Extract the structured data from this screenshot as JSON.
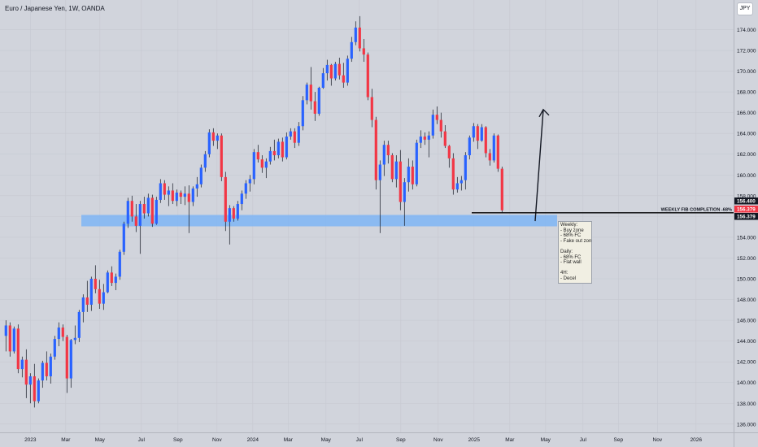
{
  "header": {
    "symbol_title": "Euro / Japanese Yen, 1W, OANDA",
    "currency_badge": "JPY"
  },
  "chart_data": {
    "type": "candlestick",
    "title": "Euro / Japanese Yen, 1W, OANDA",
    "y_ticks": [
      "136.000",
      "138.000",
      "140.000",
      "142.000",
      "144.000",
      "146.000",
      "148.000",
      "150.000",
      "152.000",
      "154.000",
      "156.000",
      "158.000",
      "160.000",
      "162.000",
      "164.000",
      "166.000",
      "168.000",
      "170.000",
      "172.000",
      "174.000"
    ],
    "x_ticks": [
      "2023",
      "Mar",
      "May",
      "Jul",
      "Sep",
      "Nov",
      "2024",
      "Mar",
      "May",
      "Jul",
      "Sep",
      "Nov",
      "2025",
      "Mar",
      "May",
      "Jul",
      "Sep",
      "Nov",
      "2026"
    ],
    "ylim": [
      135.6,
      177.2
    ],
    "colors": {
      "up": "#2962ff",
      "down": "#f23645",
      "zone": "#7fb5f5",
      "line": "#000000"
    },
    "candles": [
      [
        144.5,
        146,
        143,
        145.5
      ],
      [
        145.5,
        145.8,
        142.5,
        143
      ],
      [
        143,
        145.4,
        142.8,
        145.2
      ],
      [
        145.2,
        145.6,
        140.9,
        141.3
      ],
      [
        141.3,
        142.5,
        140.5,
        142.2
      ],
      [
        142.2,
        143.2,
        138.5,
        139.8
      ],
      [
        139.8,
        140.9,
        138,
        140.6
      ],
      [
        140.6,
        141.8,
        137.6,
        138.2
      ],
      [
        138.2,
        140.4,
        138,
        140.2
      ],
      [
        140.2,
        142.1,
        139.5,
        141.9
      ],
      [
        141.9,
        143,
        140.2,
        140.6
      ],
      [
        140.6,
        142.8,
        139.9,
        142.5
      ],
      [
        142.5,
        144.5,
        142.2,
        144.2
      ],
      [
        144.2,
        145.8,
        143.5,
        145.3
      ],
      [
        145.3,
        145.6,
        144,
        144.4
      ],
      [
        144.4,
        144.6,
        139,
        140.4
      ],
      [
        140.4,
        144.2,
        139.5,
        144.1
      ],
      [
        144.1,
        145.5,
        143.7,
        144.3
      ],
      [
        144.3,
        147,
        143.9,
        146.8
      ],
      [
        146.8,
        148.5,
        145.8,
        148.2
      ],
      [
        148.2,
        149.8,
        146.8,
        147.5
      ],
      [
        147.5,
        150.2,
        146.9,
        150
      ],
      [
        150,
        151.3,
        148.6,
        149
      ],
      [
        149,
        149.9,
        147.1,
        147.6
      ],
      [
        147.6,
        149.5,
        147,
        148.7
      ],
      [
        148.7,
        150.8,
        148.6,
        150.6
      ],
      [
        150.6,
        151.2,
        149.3,
        149.6
      ],
      [
        149.6,
        150.5,
        148.9,
        150.2
      ],
      [
        150.2,
        152.8,
        149.9,
        152.6
      ],
      [
        152.6,
        155.5,
        152.3,
        155.3
      ],
      [
        155.3,
        157.8,
        154.9,
        157.5
      ],
      [
        157.5,
        158,
        155.5,
        156
      ],
      [
        156,
        157.2,
        154.5,
        155.1
      ],
      [
        155.1,
        157.5,
        152.4,
        157.2
      ],
      [
        157.2,
        157.9,
        155.8,
        156.3
      ],
      [
        156.3,
        158.2,
        156,
        157.8
      ],
      [
        157.8,
        158.1,
        155,
        155.3
      ],
      [
        155.3,
        157.9,
        155.2,
        157.6
      ],
      [
        157.6,
        159.6,
        157.3,
        159.2
      ],
      [
        159.2,
        159.5,
        157.6,
        158.1
      ],
      [
        158.1,
        158.9,
        157,
        158.5
      ],
      [
        158.5,
        159.2,
        157.2,
        157.5
      ],
      [
        157.5,
        158.6,
        157,
        158.3
      ],
      [
        158.3,
        158.5,
        157.2,
        157.9
      ],
      [
        157.9,
        158.9,
        157.1,
        158.2
      ],
      [
        158.2,
        159,
        154.4,
        157.4
      ],
      [
        157.4,
        158.9,
        157,
        158.7
      ],
      [
        158.7,
        159.8,
        157.9,
        159.1
      ],
      [
        159.1,
        161,
        158.8,
        160.7
      ],
      [
        160.7,
        162.3,
        160.3,
        162
      ],
      [
        162,
        164.4,
        161.7,
        164.1
      ],
      [
        164.1,
        164.5,
        162.8,
        163.3
      ],
      [
        163.3,
        164,
        162.5,
        163.8
      ],
      [
        163.8,
        164,
        159.4,
        159.8
      ],
      [
        159.8,
        160.3,
        154.6,
        155.5
      ],
      [
        155.5,
        157.1,
        153.3,
        156.8
      ],
      [
        156.8,
        157,
        155.5,
        155.8
      ],
      [
        155.8,
        157.5,
        155.6,
        157.2
      ],
      [
        157.2,
        158.5,
        156.6,
        158.2
      ],
      [
        158.2,
        159.5,
        157.7,
        159.2
      ],
      [
        159.2,
        160,
        158.4,
        159.6
      ],
      [
        159.6,
        162.5,
        159.1,
        162.2
      ],
      [
        162.2,
        162.9,
        161.2,
        161.5
      ],
      [
        161.5,
        161.9,
        160.2,
        160.7
      ],
      [
        160.7,
        161.6,
        159.7,
        161.3
      ],
      [
        161.3,
        162.7,
        161,
        162.3
      ],
      [
        162.3,
        163.4,
        161.4,
        161.9
      ],
      [
        161.9,
        163.5,
        161.6,
        163.2
      ],
      [
        163.2,
        163.6,
        161.3,
        161.7
      ],
      [
        161.7,
        164.1,
        161.5,
        163.7
      ],
      [
        163.7,
        164.5,
        163.4,
        164.2
      ],
      [
        164.2,
        164.5,
        162.6,
        163.1
      ],
      [
        163.1,
        165.1,
        162.8,
        164.7
      ],
      [
        164.7,
        167.6,
        164.3,
        167.2
      ],
      [
        167.2,
        168.9,
        166.8,
        168.7
      ],
      [
        168.7,
        170.4,
        166.3,
        167.1
      ],
      [
        167.1,
        168,
        165.2,
        165.9
      ],
      [
        165.9,
        168.5,
        165.7,
        168.4
      ],
      [
        168.4,
        170.3,
        168.3,
        169.8
      ],
      [
        169.8,
        171.1,
        169.1,
        170.6
      ],
      [
        170.6,
        170.7,
        168.6,
        169.3
      ],
      [
        169.3,
        170.9,
        169.1,
        170.7
      ],
      [
        170.7,
        171.3,
        169.2,
        169.6
      ],
      [
        169.6,
        170.8,
        168.4,
        168.9
      ],
      [
        168.9,
        171.5,
        168.6,
        171.2
      ],
      [
        171.2,
        173.3,
        170.9,
        172.8
      ],
      [
        172.8,
        174.8,
        172.5,
        174.2
      ],
      [
        174.2,
        175.3,
        171.9,
        172.2
      ],
      [
        172.2,
        173.1,
        170.9,
        171.6
      ],
      [
        171.6,
        171.8,
        167.2,
        167.5
      ],
      [
        167.5,
        168.3,
        164.6,
        165.3
      ],
      [
        165.3,
        165.6,
        158.6,
        159.5
      ],
      [
        159.5,
        161.4,
        154.4,
        161
      ],
      [
        161,
        163.3,
        159.9,
        162.9
      ],
      [
        162.9,
        163.3,
        161.1,
        161.9
      ],
      [
        161.9,
        162.1,
        159.3,
        159.6
      ],
      [
        159.6,
        161.9,
        158.8,
        161.3
      ],
      [
        161.3,
        162.4,
        156.6,
        157.4
      ],
      [
        157.4,
        159.7,
        155.1,
        159.3
      ],
      [
        159.3,
        161.6,
        158.4,
        160.8
      ],
      [
        160.8,
        161.4,
        158.6,
        159.1
      ],
      [
        159.1,
        163.4,
        158.9,
        163.1
      ],
      [
        163.1,
        164.3,
        162.6,
        163.7
      ],
      [
        163.7,
        164.1,
        162.9,
        163.4
      ],
      [
        163.4,
        164.2,
        161.7,
        163.8
      ],
      [
        163.8,
        166.3,
        163.5,
        165.8
      ],
      [
        165.8,
        166.6,
        164.9,
        165.3
      ],
      [
        165.3,
        166,
        163.6,
        164.2
      ],
      [
        164.2,
        164.8,
        162.6,
        162.8
      ],
      [
        162.8,
        162.9,
        160.7,
        161.6
      ],
      [
        161.6,
        162.1,
        158.1,
        158.6
      ],
      [
        158.6,
        159.8,
        158.3,
        159.2
      ],
      [
        159.2,
        159.9,
        158.5,
        159.5
      ],
      [
        159.5,
        162.2,
        158.6,
        161.9
      ],
      [
        161.9,
        163.8,
        161.5,
        163.6
      ],
      [
        163.6,
        165,
        163.2,
        164.7
      ],
      [
        164.7,
        164.9,
        162.5,
        163.3
      ],
      [
        163.3,
        164.9,
        163.2,
        164.6
      ],
      [
        164.6,
        164.7,
        161.7,
        162.1
      ],
      [
        162.1,
        162.5,
        160.9,
        161.4
      ],
      [
        161.4,
        164,
        161.2,
        163.8
      ],
      [
        163.8,
        163.9,
        160.3,
        160.6
      ],
      [
        160.6,
        160.8,
        156.4,
        156.6
      ]
    ],
    "annotations": {
      "demand_zone": {
        "top": 156.15,
        "bottom": 155.05,
        "label": ""
      },
      "target_arrow": {
        "from": 155.55,
        "to": 166.3
      },
      "fib_line": {
        "price": 156.379,
        "label": "WEEKLY FIB COMPLETION -68%"
      },
      "price_labels": [
        "156.400",
        "156.379",
        "156.379"
      ],
      "analysis_note": "Weekly:\n- Buy zone\n- 68% FC\n- Fake out zone\n\nDaily:\n- 68% FC\n- Flat wall\n\n4H:\n- Decel"
    },
    "grid": true
  }
}
